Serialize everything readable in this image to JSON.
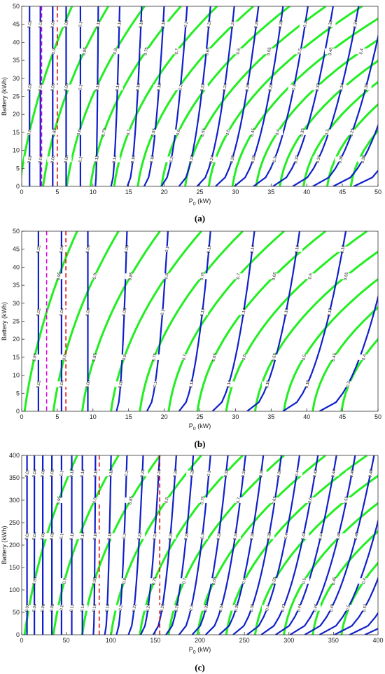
{
  "colors": {
    "blue": "#1020c8",
    "green": "#22ee22",
    "red": "#e00000",
    "magenta": "#dd00dd"
  },
  "chart_data": [
    {
      "id": "a",
      "type": "contour",
      "caption": "(a)",
      "xlabel": "P",
      "xlabel_sub": "0",
      "xlabel_unit": " (kW)",
      "ylabel": "Battery (kWh)",
      "xlim": [
        0,
        50
      ],
      "ylim": [
        0,
        50
      ],
      "xticks": [
        "0",
        "5",
        "10",
        "15",
        "20",
        "25",
        "30",
        "35",
        "40",
        "45",
        "50"
      ],
      "yticks": [
        "0",
        "5",
        "10",
        "15",
        "20",
        "25",
        "30",
        "35",
        "40",
        "45",
        "50"
      ],
      "blue_labels": [
        "0.02",
        "0.04",
        "0.06",
        "0.08",
        "0.1",
        "0.12",
        "0.14",
        "0.16",
        "0.18",
        "0.2",
        "0.22",
        "0.24",
        "0.26",
        "0.28",
        "0.3",
        "0.32",
        "0.34",
        "0.36",
        "0.38",
        "0.4"
      ],
      "green_labels": [
        "0.9",
        "0.85",
        "0.8",
        "0.75",
        "0.7",
        "0.65",
        "0.6",
        "0.55",
        "0.5",
        "0.45",
        "0.4",
        "0.35",
        "0.3",
        "0.25",
        "0.2"
      ],
      "dashed": [
        {
          "color": "red",
          "x": 5
        },
        {
          "color": "magenta",
          "x": 2.8
        }
      ]
    },
    {
      "id": "b",
      "type": "contour",
      "caption": "(b)",
      "xlabel": "P",
      "xlabel_sub": "0",
      "xlabel_unit": " (kW)",
      "ylabel": "Battery (kWh)",
      "xlim": [
        0,
        50
      ],
      "ylim": [
        0,
        50
      ],
      "xticks": [
        "0",
        "5",
        "10",
        "15",
        "20",
        "25",
        "30",
        "35",
        "40",
        "45",
        "50"
      ],
      "yticks": [
        "0",
        "5",
        "10",
        "15",
        "20",
        "25",
        "30",
        "35",
        "40",
        "45",
        "50"
      ],
      "blue_labels": [
        "0.02",
        "0.04",
        "0.06",
        "0.08",
        "0.1",
        "0.12",
        "0.14",
        "0.16",
        "0.18",
        "0.2"
      ],
      "green_labels": [
        "0.95",
        "0.9",
        "0.85",
        "0.8",
        "0.75",
        "0.7",
        "0.65",
        "0.6",
        "0.55",
        "0.5",
        "0.45",
        "0.4"
      ],
      "dashed": [
        {
          "color": "magenta",
          "x": 3.5
        },
        {
          "color": "red",
          "x": 6.2
        }
      ]
    },
    {
      "id": "c",
      "type": "contour",
      "caption": "(c)",
      "xlabel": "P",
      "xlabel_sub": "0",
      "xlabel_unit": " (kW)",
      "ylabel": "Battery (kWh)",
      "xlim": [
        0,
        400
      ],
      "ylim": [
        0,
        400
      ],
      "xticks": [
        "0",
        "50",
        "100",
        "150",
        "200",
        "250",
        "300",
        "350",
        "400"
      ],
      "yticks": [
        "0",
        "50",
        "100",
        "150",
        "200",
        "250",
        "300",
        "350",
        "400"
      ],
      "blue_labels": [
        "0.02",
        "0.04",
        "0.06",
        "0.08",
        "0.1",
        "0.12",
        "0.14",
        "0.16",
        "0.18",
        "0.2",
        "0.22",
        "0.24",
        "0.26",
        "0.28",
        "0.3",
        "0.32",
        "0.34",
        "0.36",
        "0.38",
        "0.4",
        "0.42",
        "0.44",
        "0.46",
        "0.48",
        "0.5",
        "0.52",
        "0.54",
        "0.56"
      ],
      "green_labels": [
        "0.95",
        "0.9",
        "0.85",
        "0.8",
        "0.75",
        "0.7",
        "0.65",
        "0.6",
        "0.55",
        "0.5",
        "0.45",
        "0.4"
      ],
      "dashed": [
        {
          "color": "red",
          "x": 87
        },
        {
          "color": "red",
          "x": 155
        }
      ]
    }
  ]
}
